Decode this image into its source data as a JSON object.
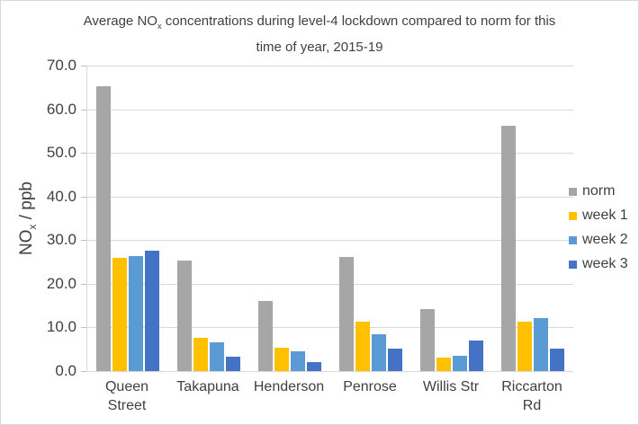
{
  "title": {
    "line1_pre": "Average NO",
    "line1_sub": "x",
    "line1_post": " concentrations during level-4 lockdown compared to norm for this",
    "line2": "time of year, 2015-19"
  },
  "y_axis": {
    "title_pre": "NO",
    "title_sub": "x",
    "title_post": " / ppb",
    "tick_labels": [
      "0.0",
      "10.0",
      "20.0",
      "30.0",
      "40.0",
      "50.0",
      "60.0",
      "70.0"
    ]
  },
  "chart_data": {
    "type": "bar",
    "title": "Average NOx concentrations during level-4 lockdown compared to norm for this time of year, 2015-19",
    "xlabel": "",
    "ylabel": "NOx / ppb",
    "ylim": [
      0,
      70
    ],
    "ytick_step": 10,
    "grid": true,
    "legend_position": "right",
    "categories": [
      "Queen Street",
      "Takapuna",
      "Henderson",
      "Penrose",
      "Willis Str",
      "Riccarton Rd"
    ],
    "category_display": [
      "Queen\nStreet",
      "Takapuna",
      "Henderson",
      "Penrose",
      "Willis Str",
      "Riccarton\nRd"
    ],
    "series": [
      {
        "name": "norm",
        "color": "#A6A6A6",
        "values": [
          65.2,
          25.4,
          16.0,
          26.1,
          14.2,
          56.3
        ]
      },
      {
        "name": "week 1",
        "color": "#FFC000",
        "values": [
          26.0,
          7.6,
          5.3,
          11.3,
          3.2,
          11.4
        ]
      },
      {
        "name": "week 2",
        "color": "#5B9BD5",
        "values": [
          26.4,
          6.5,
          4.6,
          8.4,
          3.6,
          12.1
        ]
      },
      {
        "name": "week 3",
        "color": "#4472C4",
        "values": [
          27.6,
          3.4,
          2.0,
          5.1,
          7.1,
          5.1
        ]
      }
    ]
  },
  "colors": {
    "background": "#FFFFFF",
    "border": "#D9D9D9",
    "gridline": "#D9D9D9",
    "axis_line": "#D9D9D9",
    "tick_mark": "#BFBFBF",
    "text": "#404040"
  }
}
